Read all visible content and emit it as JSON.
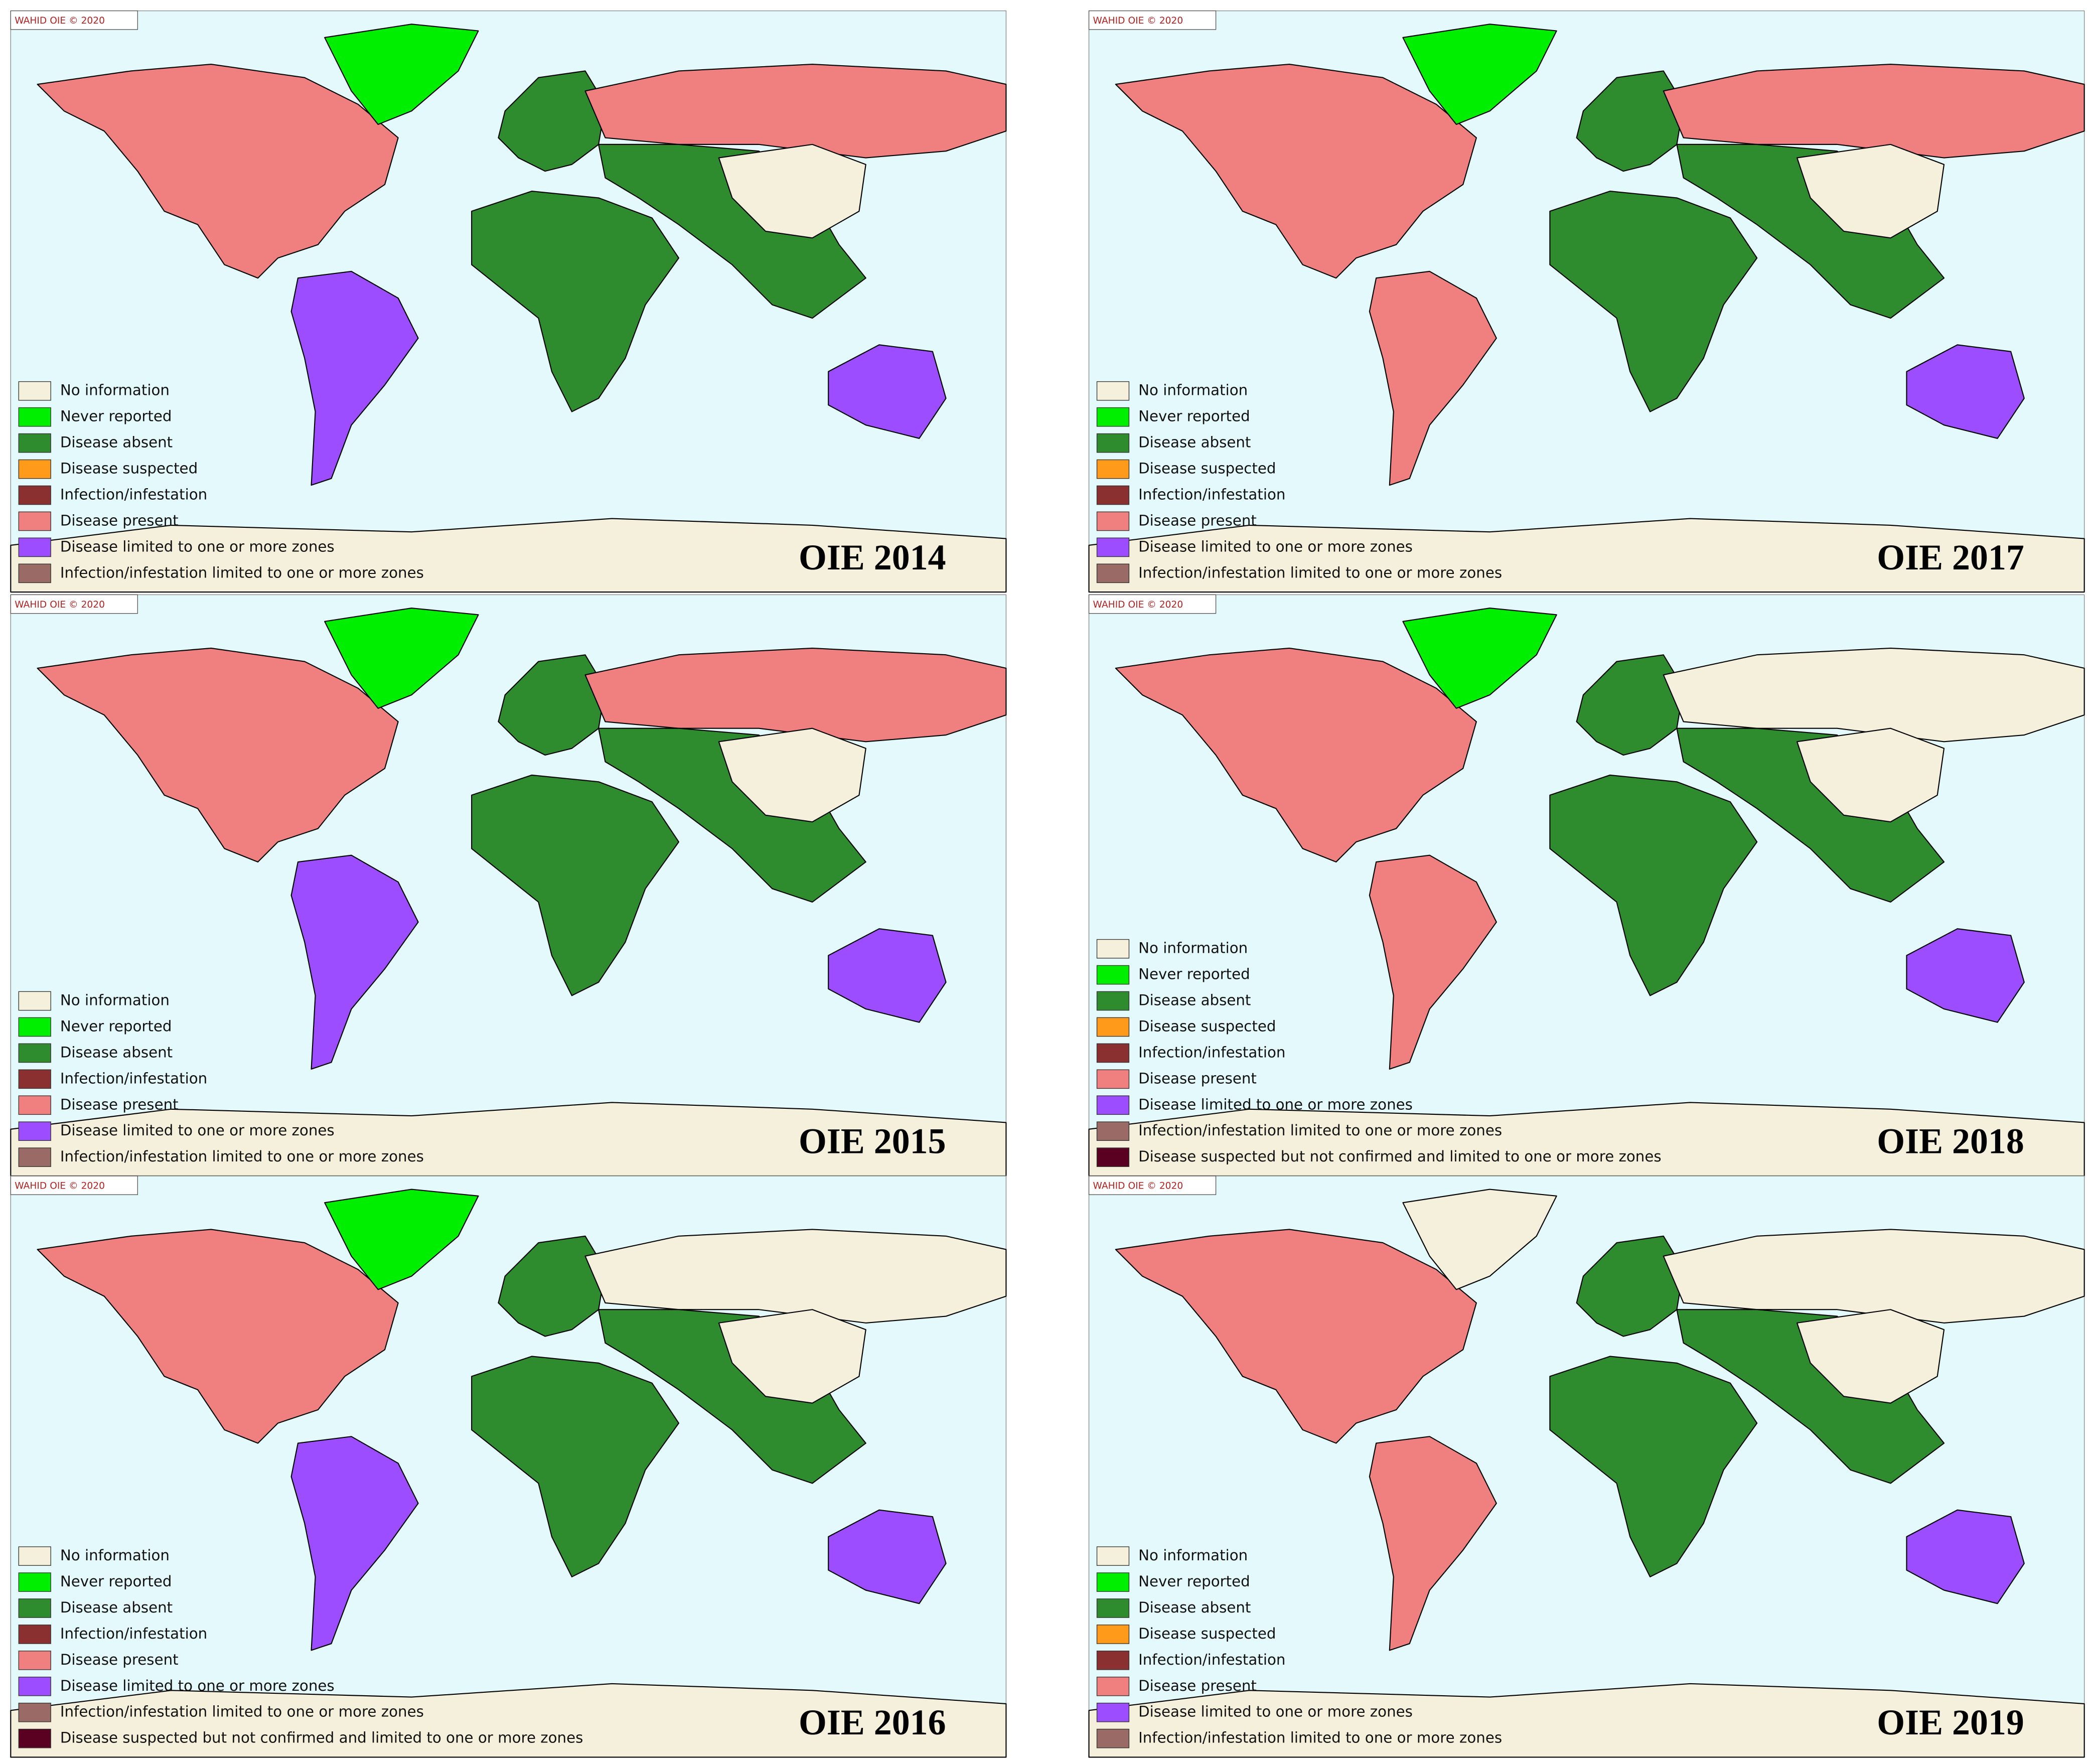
{
  "panels": [
    {
      "copyright": "WAHID OIE © 2020",
      "title": "OIE 2014",
      "legend": [
        {
          "label": "No information",
          "color": "#f5f0dc"
        },
        {
          "label": "Never reported",
          "color": "#00ee00"
        },
        {
          "label": "Disease absent",
          "color": "#2e8b2e"
        },
        {
          "label": "Disease suspected",
          "color": "#ff9a1a"
        },
        {
          "label": "Infection/infestation",
          "color": "#8b3030"
        },
        {
          "label": "Disease present",
          "color": "#f08080"
        },
        {
          "label": "Disease limited to one or more zones",
          "color": "#9b4dff"
        },
        {
          "label": "Infection/infestation limited to one or more zones",
          "color": "#9a6a66"
        }
      ]
    },
    {
      "copyright": "WAHID OIE © 2020",
      "title": "OIE 2017",
      "legend": [
        {
          "label": "No information",
          "color": "#f5f0dc"
        },
        {
          "label": "Never reported",
          "color": "#00ee00"
        },
        {
          "label": "Disease absent",
          "color": "#2e8b2e"
        },
        {
          "label": "Disease suspected",
          "color": "#ff9a1a"
        },
        {
          "label": "Infection/infestation",
          "color": "#8b3030"
        },
        {
          "label": "Disease present",
          "color": "#f08080"
        },
        {
          "label": "Disease limited to one or more zones",
          "color": "#9b4dff"
        },
        {
          "label": "Infection/infestation limited to one or more zones",
          "color": "#9a6a66"
        }
      ]
    },
    {
      "copyright": "WAHID OIE © 2020",
      "title": "OIE 2015",
      "legend": [
        {
          "label": "No information",
          "color": "#f5f0dc"
        },
        {
          "label": "Never reported",
          "color": "#00ee00"
        },
        {
          "label": "Disease absent",
          "color": "#2e8b2e"
        },
        {
          "label": "Infection/infestation",
          "color": "#8b3030"
        },
        {
          "label": "Disease present",
          "color": "#f08080"
        },
        {
          "label": "Disease limited to one or more zones",
          "color": "#9b4dff"
        },
        {
          "label": "Infection/infestation limited to one or more zones",
          "color": "#9a6a66"
        }
      ]
    },
    {
      "copyright": "WAHID OIE © 2020",
      "title": "OIE 2018",
      "legend": [
        {
          "label": "No information",
          "color": "#f5f0dc"
        },
        {
          "label": "Never reported",
          "color": "#00ee00"
        },
        {
          "label": "Disease absent",
          "color": "#2e8b2e"
        },
        {
          "label": "Disease suspected",
          "color": "#ff9a1a"
        },
        {
          "label": "Infection/infestation",
          "color": "#8b3030"
        },
        {
          "label": "Disease present",
          "color": "#f08080"
        },
        {
          "label": "Disease limited to one or more zones",
          "color": "#9b4dff"
        },
        {
          "label": "Infection/infestation limited to one or more zones",
          "color": "#9a6a66"
        },
        {
          "label": "Disease suspected but not confirmed and limited to one or more zones",
          "color": "#5a0020"
        }
      ]
    },
    {
      "copyright": "WAHID OIE © 2020",
      "title": "OIE 2016",
      "legend": [
        {
          "label": "No information",
          "color": "#f5f0dc"
        },
        {
          "label": "Never reported",
          "color": "#00ee00"
        },
        {
          "label": "Disease absent",
          "color": "#2e8b2e"
        },
        {
          "label": "Infection/infestation",
          "color": "#8b3030"
        },
        {
          "label": "Disease present",
          "color": "#f08080"
        },
        {
          "label": "Disease limited to one or more zones",
          "color": "#9b4dff"
        },
        {
          "label": "Infection/infestation limited to one or more zones",
          "color": "#9a6a66"
        },
        {
          "label": "Disease suspected but not confirmed and limited to one or more zones",
          "color": "#5a0020"
        }
      ]
    },
    {
      "copyright": "WAHID OIE © 2020",
      "title": "OIE 2019",
      "legend": [
        {
          "label": "No information",
          "color": "#f5f0dc"
        },
        {
          "label": "Never reported",
          "color": "#00ee00"
        },
        {
          "label": "Disease absent",
          "color": "#2e8b2e"
        },
        {
          "label": "Disease suspected",
          "color": "#ff9a1a"
        },
        {
          "label": "Infection/infestation",
          "color": "#8b3030"
        },
        {
          "label": "Disease present",
          "color": "#f08080"
        },
        {
          "label": "Disease limited to one or more zones",
          "color": "#9b4dff"
        },
        {
          "label": "Infection/infestation limited to one or more zones",
          "color": "#9a6a66"
        }
      ]
    }
  ]
}
